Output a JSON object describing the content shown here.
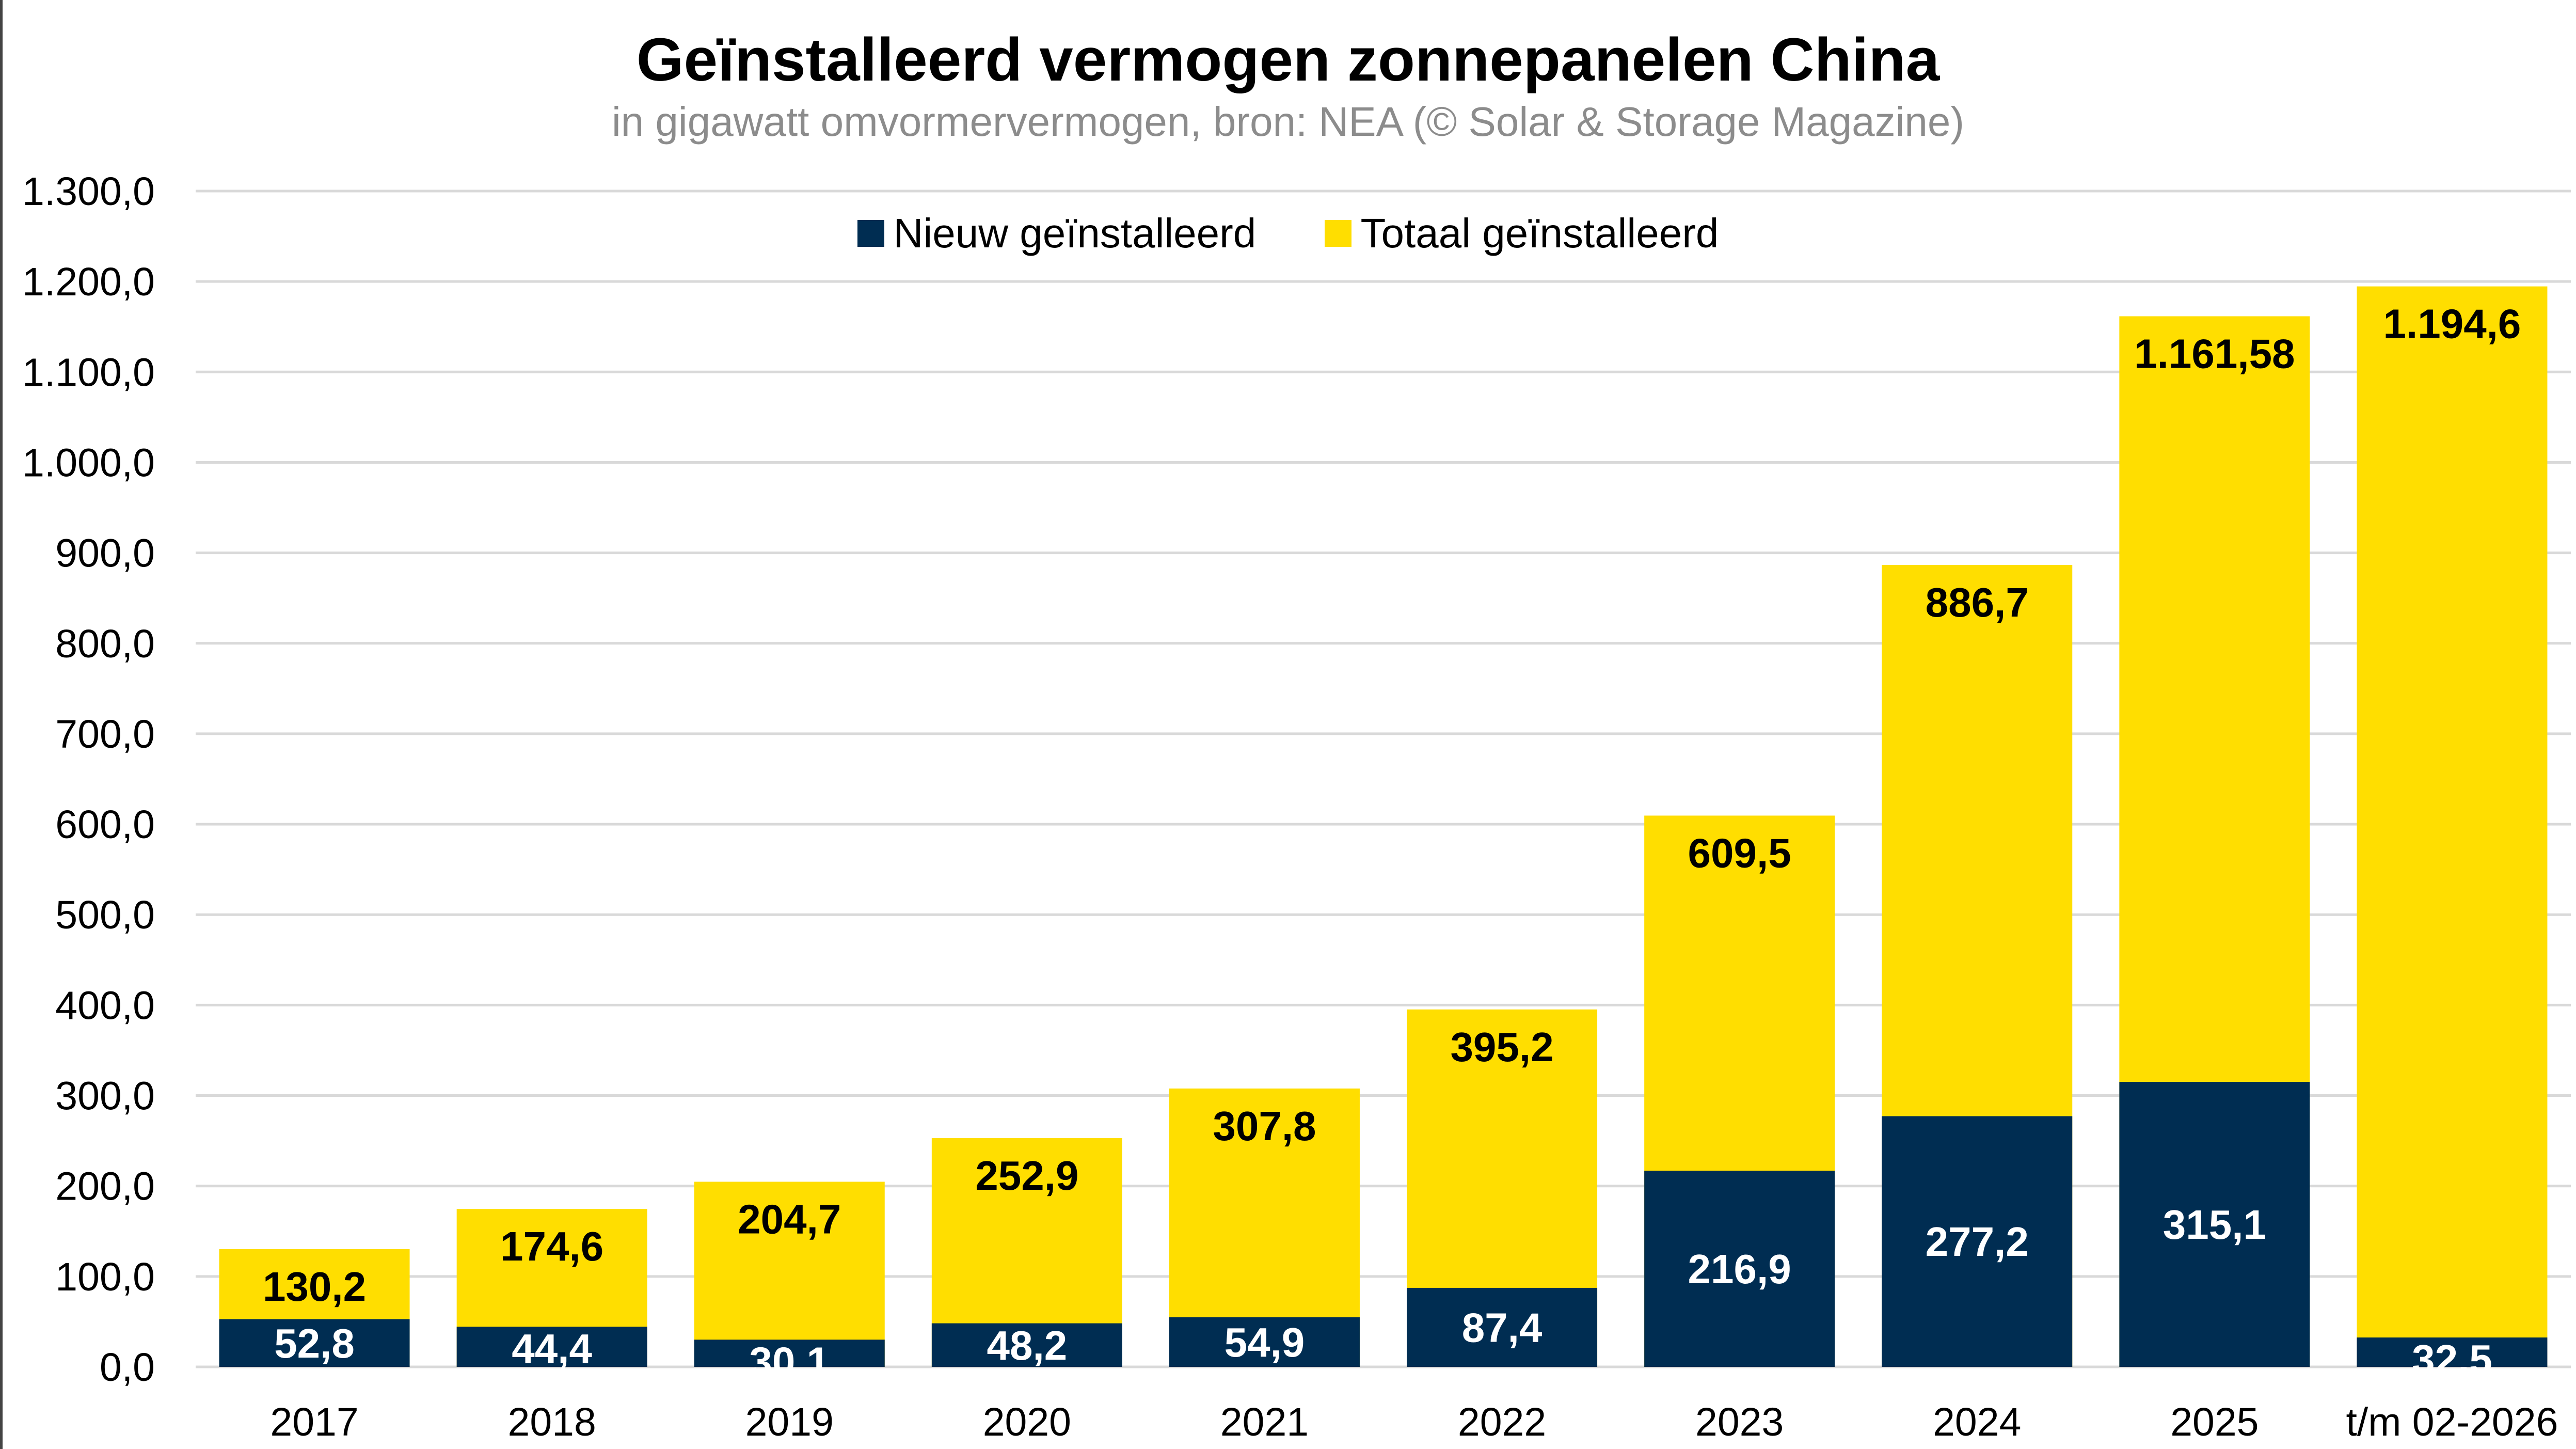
{
  "colors": {
    "new": "#002d52",
    "total": "#ffde00",
    "grid": "#d9d9d9"
  },
  "chart_data": {
    "type": "bar",
    "title": "Geïnstalleerd vermogen zonnepanelen China",
    "subtitle": "in gigawatt omvormervermogen, bron: NEA (© Solar & Storage Magazine)",
    "xlabel": "",
    "ylabel": "",
    "ylim": [
      0,
      1300
    ],
    "grid": true,
    "legend_position": "top-center",
    "yticks": [
      "0,0",
      "100,0",
      "200,0",
      "300,0",
      "400,0",
      "500,0",
      "600,0",
      "700,0",
      "800,0",
      "900,0",
      "1.000,0",
      "1.100,0",
      "1.200,0",
      "1.300,0"
    ],
    "categories": [
      "2017",
      "2018",
      "2019",
      "2020",
      "2021",
      "2022",
      "2023",
      "2024",
      "2025",
      "t/m 02-2026"
    ],
    "series": [
      {
        "name": "Nieuw geïnstalleerd",
        "values": [
          52.8,
          44.4,
          30.1,
          48.2,
          54.9,
          87.4,
          216.9,
          277.2,
          315.1,
          32.5
        ],
        "labels": [
          "52,8",
          "44,4",
          "30,1",
          "48,2",
          "54,9",
          "87,4",
          "216,9",
          "277,2",
          "315,1",
          "32,5"
        ]
      },
      {
        "name": "Totaal geïnstalleerd",
        "values": [
          130.2,
          174.6,
          204.7,
          252.9,
          307.8,
          395.2,
          609.5,
          886.7,
          1161.58,
          1194.6
        ],
        "labels": [
          "130,2",
          "174,6",
          "204,7",
          "252,9",
          "307,8",
          "395,2",
          "609,5",
          "886,7",
          "1.161,58",
          "1.194,6"
        ]
      }
    ]
  }
}
